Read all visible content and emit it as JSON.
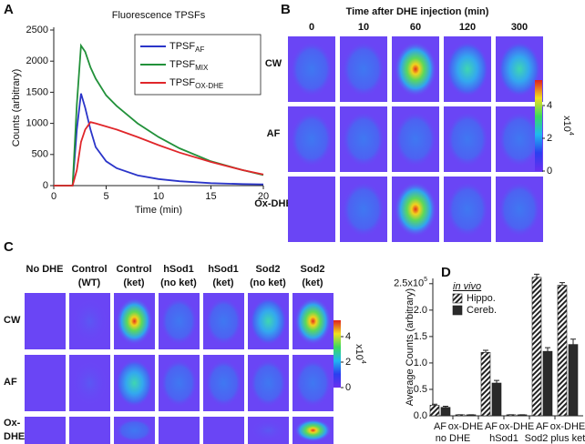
{
  "chart_data": [
    {
      "type": "line",
      "panel": "A",
      "title": "Fluorescence TPSFs",
      "x_label": "Time (min)",
      "y_label": "Counts (arbitrary)",
      "x": [
        0,
        1.8,
        2.2,
        2.6,
        3,
        3.5,
        4,
        5,
        6,
        8,
        10,
        12,
        15,
        18,
        20
      ],
      "series": [
        {
          "name": "TPSF",
          "subscript": "AF",
          "color": "#2b35c9",
          "values": [
            0,
            0,
            900,
            1480,
            1250,
            900,
            620,
            390,
            280,
            165,
            105,
            70,
            40,
            25,
            20
          ]
        },
        {
          "name": "TPSF",
          "subscript": "MIX",
          "color": "#22913a",
          "values": [
            0,
            0,
            1300,
            2250,
            2150,
            1900,
            1720,
            1450,
            1280,
            1000,
            780,
            600,
            390,
            250,
            170
          ]
        },
        {
          "name": "TPSF",
          "subscript": "OX-DHE",
          "color": "#e0262a",
          "values": [
            0,
            0,
            250,
            700,
            900,
            1020,
            1000,
            950,
            900,
            780,
            650,
            530,
            380,
            250,
            180
          ]
        }
      ],
      "xlim": [
        0,
        20
      ],
      "xticks": [
        0,
        5,
        10,
        15,
        20
      ],
      "ylim": [
        0,
        2500
      ],
      "yticks": [
        0,
        500,
        1000,
        1500,
        2000,
        2500
      ],
      "legend": "upper right"
    },
    {
      "type": "bar",
      "panel": "D",
      "y_label": "Average Counts (arbitrary)",
      "categories": [
        "AF",
        "ox-DHE",
        "AF",
        "ox-DHE",
        "AF",
        "ox-DHE"
      ],
      "groups": [
        "no DHE",
        "hSod1",
        "Sod2 plus ket"
      ],
      "legend_title": "in vivo",
      "series": [
        {
          "name": "Hippo.",
          "color": "#222222",
          "hatch": true,
          "values": [
            0.2,
            0.02,
            1.2,
            0.02,
            2.62,
            2.47
          ],
          "errors": [
            0.02,
            0,
            0.04,
            0,
            0.06,
            0.05
          ]
        },
        {
          "name": "Cereb.",
          "color": "#2a2a2a",
          "hatch": false,
          "values": [
            0.16,
            0.02,
            0.62,
            0.02,
            1.22,
            1.35
          ],
          "errors": [
            0.02,
            0,
            0.05,
            0,
            0.07,
            0.1
          ]
        }
      ],
      "ylim": [
        0,
        2.6
      ],
      "yticks": [
        {
          "value": 0,
          "label": "0.0"
        },
        {
          "value": 0.5,
          "label": "0.5"
        },
        {
          "value": 1,
          "label": "1.0"
        },
        {
          "value": 1.5,
          "label": "1.5"
        },
        {
          "value": 2,
          "label": "2.0"
        },
        {
          "value": 2.5,
          "label": "2.5x10",
          "exponent": "5"
        }
      ]
    }
  ],
  "panels": {
    "B": {
      "label": "B",
      "title": "Time after DHE injection (min)",
      "columns": [
        "0",
        "10",
        "60",
        "120",
        "300"
      ],
      "rows": [
        "CW",
        "AF",
        "Ox-DHE"
      ],
      "colorbar": {
        "ticks": [
          0,
          2,
          4
        ],
        "label": "x10",
        "exponent": "4"
      }
    },
    "C": {
      "label": "C",
      "columns": [
        [
          "No DHE"
        ],
        [
          "Control",
          "(WT)"
        ],
        [
          "Control",
          "(ket)"
        ],
        [
          "hSod1",
          "(no ket)"
        ],
        [
          "hSod1",
          "(ket)"
        ],
        [
          "Sod2",
          "(no ket)"
        ],
        [
          "Sod2",
          "(ket)"
        ]
      ],
      "rows": [
        [
          "CW"
        ],
        [
          "AF"
        ],
        [
          "Ox-",
          "DHE"
        ]
      ],
      "colorbar": {
        "ticks": [
          0,
          2,
          4
        ],
        "label": "x10",
        "exponent": "4"
      }
    }
  }
}
